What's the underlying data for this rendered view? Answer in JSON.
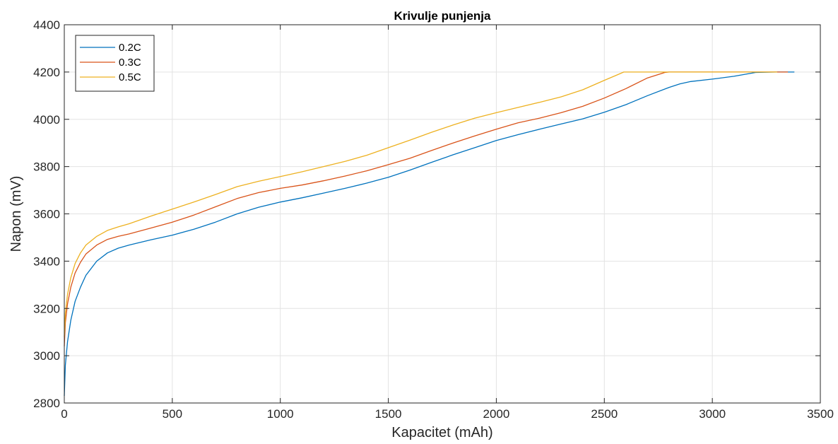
{
  "chart_data": {
    "type": "line",
    "title": "Krivulje punjenja",
    "xlabel": "Kapacitet (mAh)",
    "ylabel": "Napon (mV)",
    "xlim": [
      0,
      3500
    ],
    "ylim": [
      2800,
      4400
    ],
    "xticks": [
      "0",
      "500",
      "1000",
      "1500",
      "2000",
      "2500",
      "3000",
      "3500"
    ],
    "yticks": [
      "2800",
      "3000",
      "3200",
      "3400",
      "3600",
      "3800",
      "4000",
      "4200",
      "4400"
    ],
    "grid": true,
    "legend_position": "top-left",
    "series": [
      {
        "name": "0.2C",
        "color": "#0072BD",
        "x": [
          0,
          5,
          15,
          30,
          50,
          75,
          100,
          150,
          200,
          250,
          300,
          400,
          500,
          600,
          700,
          800,
          900,
          1000,
          1100,
          1200,
          1300,
          1400,
          1500,
          1600,
          1700,
          1800,
          1900,
          2000,
          2100,
          2200,
          2300,
          2400,
          2500,
          2600,
          2700,
          2800,
          2850,
          2900,
          3000,
          3100,
          3200,
          3300,
          3380
        ],
        "y": [
          2830,
          2960,
          3060,
          3150,
          3230,
          3290,
          3340,
          3400,
          3435,
          3455,
          3468,
          3490,
          3510,
          3535,
          3565,
          3600,
          3628,
          3650,
          3668,
          3688,
          3708,
          3730,
          3755,
          3785,
          3818,
          3850,
          3880,
          3910,
          3935,
          3958,
          3980,
          4002,
          4030,
          4062,
          4100,
          4135,
          4150,
          4160,
          4170,
          4182,
          4198,
          4200,
          4200
        ]
      },
      {
        "name": "0.3C",
        "color": "#D95319",
        "x": [
          0,
          5,
          15,
          30,
          50,
          75,
          100,
          150,
          200,
          250,
          300,
          400,
          500,
          600,
          700,
          800,
          900,
          1000,
          1100,
          1200,
          1300,
          1400,
          1500,
          1600,
          1700,
          1800,
          1900,
          2000,
          2100,
          2200,
          2300,
          2400,
          2500,
          2600,
          2700,
          2780,
          2800,
          2900,
          3000,
          3100,
          3200,
          3300,
          3350
        ],
        "y": [
          3040,
          3140,
          3220,
          3290,
          3350,
          3395,
          3430,
          3468,
          3492,
          3505,
          3515,
          3540,
          3565,
          3595,
          3630,
          3665,
          3690,
          3708,
          3722,
          3740,
          3760,
          3782,
          3808,
          3835,
          3868,
          3900,
          3930,
          3958,
          3985,
          4005,
          4028,
          4055,
          4090,
          4130,
          4175,
          4198,
          4200,
          4200,
          4200,
          4200,
          4200,
          4200,
          4200
        ]
      },
      {
        "name": "0.5C",
        "color": "#EDB120",
        "x": [
          0,
          5,
          15,
          30,
          50,
          75,
          100,
          150,
          200,
          250,
          300,
          400,
          500,
          600,
          700,
          800,
          900,
          1000,
          1100,
          1200,
          1300,
          1400,
          1500,
          1600,
          1700,
          1800,
          1900,
          2000,
          2100,
          2200,
          2300,
          2400,
          2500,
          2560,
          2590,
          2700,
          2800,
          2900,
          3000,
          3100,
          3200,
          3300
        ],
        "y": [
          3080,
          3180,
          3260,
          3330,
          3390,
          3435,
          3468,
          3505,
          3530,
          3545,
          3558,
          3590,
          3620,
          3650,
          3682,
          3715,
          3738,
          3758,
          3778,
          3800,
          3822,
          3848,
          3880,
          3912,
          3945,
          3976,
          4005,
          4028,
          4050,
          4072,
          4095,
          4125,
          4165,
          4188,
          4200,
          4200,
          4200,
          4200,
          4200,
          4200,
          4200,
          4200
        ]
      }
    ]
  }
}
